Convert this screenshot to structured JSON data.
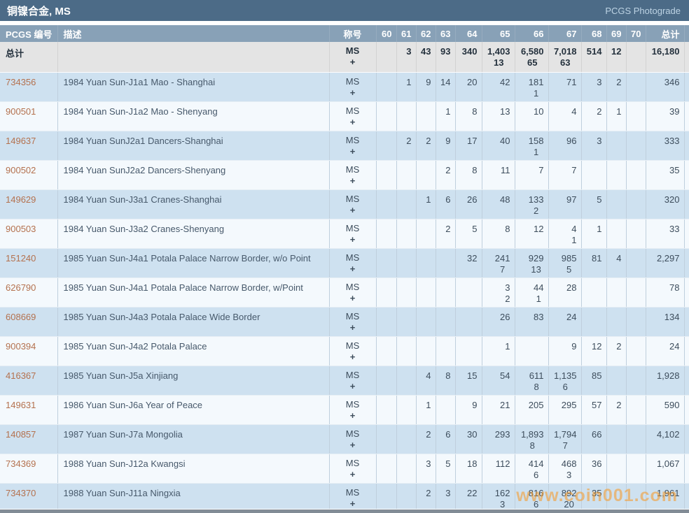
{
  "header": {
    "title": "铜镍合金, MS",
    "photograde_label": "PCGS Photograde"
  },
  "table": {
    "columns": [
      "PCGS 编号",
      "描述",
      "称号",
      "60",
      "61",
      "62",
      "63",
      "64",
      "65",
      "66",
      "67",
      "68",
      "69",
      "70",
      "总计"
    ],
    "designation": "MS",
    "designation_plus": "+",
    "total_row": {
      "label": "总计",
      "desc": "",
      "grades": [
        [
          "",
          ""
        ],
        [
          "3",
          ""
        ],
        [
          "43",
          ""
        ],
        [
          "93",
          ""
        ],
        [
          "340",
          ""
        ],
        [
          "1,403",
          "13"
        ],
        [
          "6,580",
          "65"
        ],
        [
          "7,018",
          "63"
        ],
        [
          "514",
          ""
        ],
        [
          "12",
          ""
        ],
        [
          "",
          ""
        ]
      ],
      "total": "16,180"
    },
    "rows": [
      {
        "pcgs": "734356",
        "desc": "1984 Yuan Sun-J1a1 Mao - Shanghai",
        "grades": [
          [
            "",
            ""
          ],
          [
            "1",
            ""
          ],
          [
            "9",
            ""
          ],
          [
            "14",
            ""
          ],
          [
            "20",
            ""
          ],
          [
            "42",
            ""
          ],
          [
            "181",
            "1"
          ],
          [
            "71",
            ""
          ],
          [
            "3",
            ""
          ],
          [
            "2",
            ""
          ],
          [
            "",
            ""
          ]
        ],
        "total": "346"
      },
      {
        "pcgs": "900501",
        "desc": "1984 Yuan Sun-J1a2 Mao - Shenyang",
        "grades": [
          [
            "",
            ""
          ],
          [
            "",
            ""
          ],
          [
            "",
            ""
          ],
          [
            "1",
            ""
          ],
          [
            "8",
            ""
          ],
          [
            "13",
            ""
          ],
          [
            "10",
            ""
          ],
          [
            "4",
            ""
          ],
          [
            "2",
            ""
          ],
          [
            "1",
            ""
          ],
          [
            "",
            ""
          ]
        ],
        "total": "39"
      },
      {
        "pcgs": "149637",
        "desc": "1984 Yuan SunJ2a1 Dancers-Shanghai",
        "grades": [
          [
            "",
            ""
          ],
          [
            "2",
            ""
          ],
          [
            "2",
            ""
          ],
          [
            "9",
            ""
          ],
          [
            "17",
            ""
          ],
          [
            "40",
            ""
          ],
          [
            "158",
            "1"
          ],
          [
            "96",
            ""
          ],
          [
            "3",
            ""
          ],
          [
            "",
            ""
          ],
          [
            "",
            ""
          ]
        ],
        "total": "333"
      },
      {
        "pcgs": "900502",
        "desc": "1984 Yuan SunJ2a2 Dancers-Shenyang",
        "grades": [
          [
            "",
            ""
          ],
          [
            "",
            ""
          ],
          [
            "",
            ""
          ],
          [
            "2",
            ""
          ],
          [
            "8",
            ""
          ],
          [
            "11",
            ""
          ],
          [
            "7",
            ""
          ],
          [
            "7",
            ""
          ],
          [
            "",
            ""
          ],
          [
            "",
            ""
          ],
          [
            "",
            ""
          ]
        ],
        "total": "35"
      },
      {
        "pcgs": "149629",
        "desc": "1984 Yuan Sun-J3a1 Cranes-Shanghai",
        "grades": [
          [
            "",
            ""
          ],
          [
            "",
            ""
          ],
          [
            "1",
            ""
          ],
          [
            "6",
            ""
          ],
          [
            "26",
            ""
          ],
          [
            "48",
            ""
          ],
          [
            "133",
            "2"
          ],
          [
            "97",
            ""
          ],
          [
            "5",
            ""
          ],
          [
            "",
            ""
          ],
          [
            "",
            ""
          ]
        ],
        "total": "320"
      },
      {
        "pcgs": "900503",
        "desc": "1984 Yuan Sun-J3a2 Cranes-Shenyang",
        "grades": [
          [
            "",
            ""
          ],
          [
            "",
            ""
          ],
          [
            "",
            ""
          ],
          [
            "2",
            ""
          ],
          [
            "5",
            ""
          ],
          [
            "8",
            ""
          ],
          [
            "12",
            ""
          ],
          [
            "4",
            "1"
          ],
          [
            "1",
            ""
          ],
          [
            "",
            ""
          ],
          [
            "",
            ""
          ]
        ],
        "total": "33"
      },
      {
        "pcgs": "151240",
        "desc": "1985 Yuan Sun-J4a1 Potala Palace Narrow Border, w/o Point",
        "grades": [
          [
            "",
            ""
          ],
          [
            "",
            ""
          ],
          [
            "",
            ""
          ],
          [
            "",
            ""
          ],
          [
            "32",
            ""
          ],
          [
            "241",
            "7"
          ],
          [
            "929",
            "13"
          ],
          [
            "985",
            "5"
          ],
          [
            "81",
            ""
          ],
          [
            "4",
            ""
          ],
          [
            "",
            ""
          ]
        ],
        "total": "2,297"
      },
      {
        "pcgs": "626790",
        "desc": "1985 Yuan Sun-J4a1 Potala Palace Narrow Border, w/Point",
        "grades": [
          [
            "",
            ""
          ],
          [
            "",
            ""
          ],
          [
            "",
            ""
          ],
          [
            "",
            ""
          ],
          [
            "",
            ""
          ],
          [
            "3",
            "2"
          ],
          [
            "44",
            "1"
          ],
          [
            "28",
            ""
          ],
          [
            "",
            ""
          ],
          [
            "",
            ""
          ],
          [
            "",
            ""
          ]
        ],
        "total": "78"
      },
      {
        "pcgs": "608669",
        "desc": "1985 Yuan Sun-J4a3 Potala Palace Wide Border",
        "grades": [
          [
            "",
            ""
          ],
          [
            "",
            ""
          ],
          [
            "",
            ""
          ],
          [
            "",
            ""
          ],
          [
            "",
            ""
          ],
          [
            "26",
            ""
          ],
          [
            "83",
            ""
          ],
          [
            "24",
            ""
          ],
          [
            "",
            ""
          ],
          [
            "",
            ""
          ],
          [
            "",
            ""
          ]
        ],
        "total": "134"
      },
      {
        "pcgs": "900394",
        "desc": "1985 Yuan Sun-J4a2 Potala Palace",
        "grades": [
          [
            "",
            ""
          ],
          [
            "",
            ""
          ],
          [
            "",
            ""
          ],
          [
            "",
            ""
          ],
          [
            "",
            ""
          ],
          [
            "1",
            ""
          ],
          [
            "",
            ""
          ],
          [
            "9",
            ""
          ],
          [
            "12",
            ""
          ],
          [
            "2",
            ""
          ],
          [
            "",
            ""
          ]
        ],
        "total": "24"
      },
      {
        "pcgs": "416367",
        "desc": "1985 Yuan Sun-J5a Xinjiang",
        "grades": [
          [
            "",
            ""
          ],
          [
            "",
            ""
          ],
          [
            "4",
            ""
          ],
          [
            "8",
            ""
          ],
          [
            "15",
            ""
          ],
          [
            "54",
            ""
          ],
          [
            "611",
            "8"
          ],
          [
            "1,135",
            "6"
          ],
          [
            "85",
            ""
          ],
          [
            "",
            ""
          ],
          [
            "",
            ""
          ]
        ],
        "total": "1,928"
      },
      {
        "pcgs": "149631",
        "desc": "1986 Yuan Sun-J6a Year of Peace",
        "grades": [
          [
            "",
            ""
          ],
          [
            "",
            ""
          ],
          [
            "1",
            ""
          ],
          [
            "",
            ""
          ],
          [
            "9",
            ""
          ],
          [
            "21",
            ""
          ],
          [
            "205",
            ""
          ],
          [
            "295",
            ""
          ],
          [
            "57",
            ""
          ],
          [
            "2",
            ""
          ],
          [
            "",
            ""
          ]
        ],
        "total": "590"
      },
      {
        "pcgs": "140857",
        "desc": "1987 Yuan Sun-J7a Mongolia",
        "grades": [
          [
            "",
            ""
          ],
          [
            "",
            ""
          ],
          [
            "2",
            ""
          ],
          [
            "6",
            ""
          ],
          [
            "30",
            ""
          ],
          [
            "293",
            ""
          ],
          [
            "1,893",
            "8"
          ],
          [
            "1,794",
            "7"
          ],
          [
            "66",
            ""
          ],
          [
            "",
            ""
          ],
          [
            "",
            ""
          ]
        ],
        "total": "4,102"
      },
      {
        "pcgs": "734369",
        "desc": "1988 Yuan Sun-J12a Kwangsi",
        "grades": [
          [
            "",
            ""
          ],
          [
            "",
            ""
          ],
          [
            "3",
            ""
          ],
          [
            "5",
            ""
          ],
          [
            "18",
            ""
          ],
          [
            "112",
            ""
          ],
          [
            "414",
            "6"
          ],
          [
            "468",
            "3"
          ],
          [
            "36",
            ""
          ],
          [
            "",
            ""
          ],
          [
            "",
            ""
          ]
        ],
        "total": "1,067"
      },
      {
        "pcgs": "734370",
        "desc": "1988 Yuan Sun-J11a Ningxia",
        "grades": [
          [
            "",
            ""
          ],
          [
            "",
            ""
          ],
          [
            "2",
            ""
          ],
          [
            "3",
            ""
          ],
          [
            "22",
            ""
          ],
          [
            "162",
            "3"
          ],
          [
            "816",
            "6"
          ],
          [
            "892",
            "20"
          ],
          [
            "35",
            ""
          ],
          [
            "",
            ""
          ],
          [
            "",
            ""
          ]
        ],
        "total": "1,961"
      }
    ]
  },
  "watermark": "www.coin001.com",
  "colors": {
    "title_bar": "#4c6b87",
    "header_row": "#88a1b7",
    "total_row_bg": "#e4e4e4",
    "row_blue": "#cee1f0",
    "row_white": "#f4f9fd",
    "pcgs_link": "#b4714e",
    "watermark_orange": "#f79821"
  }
}
